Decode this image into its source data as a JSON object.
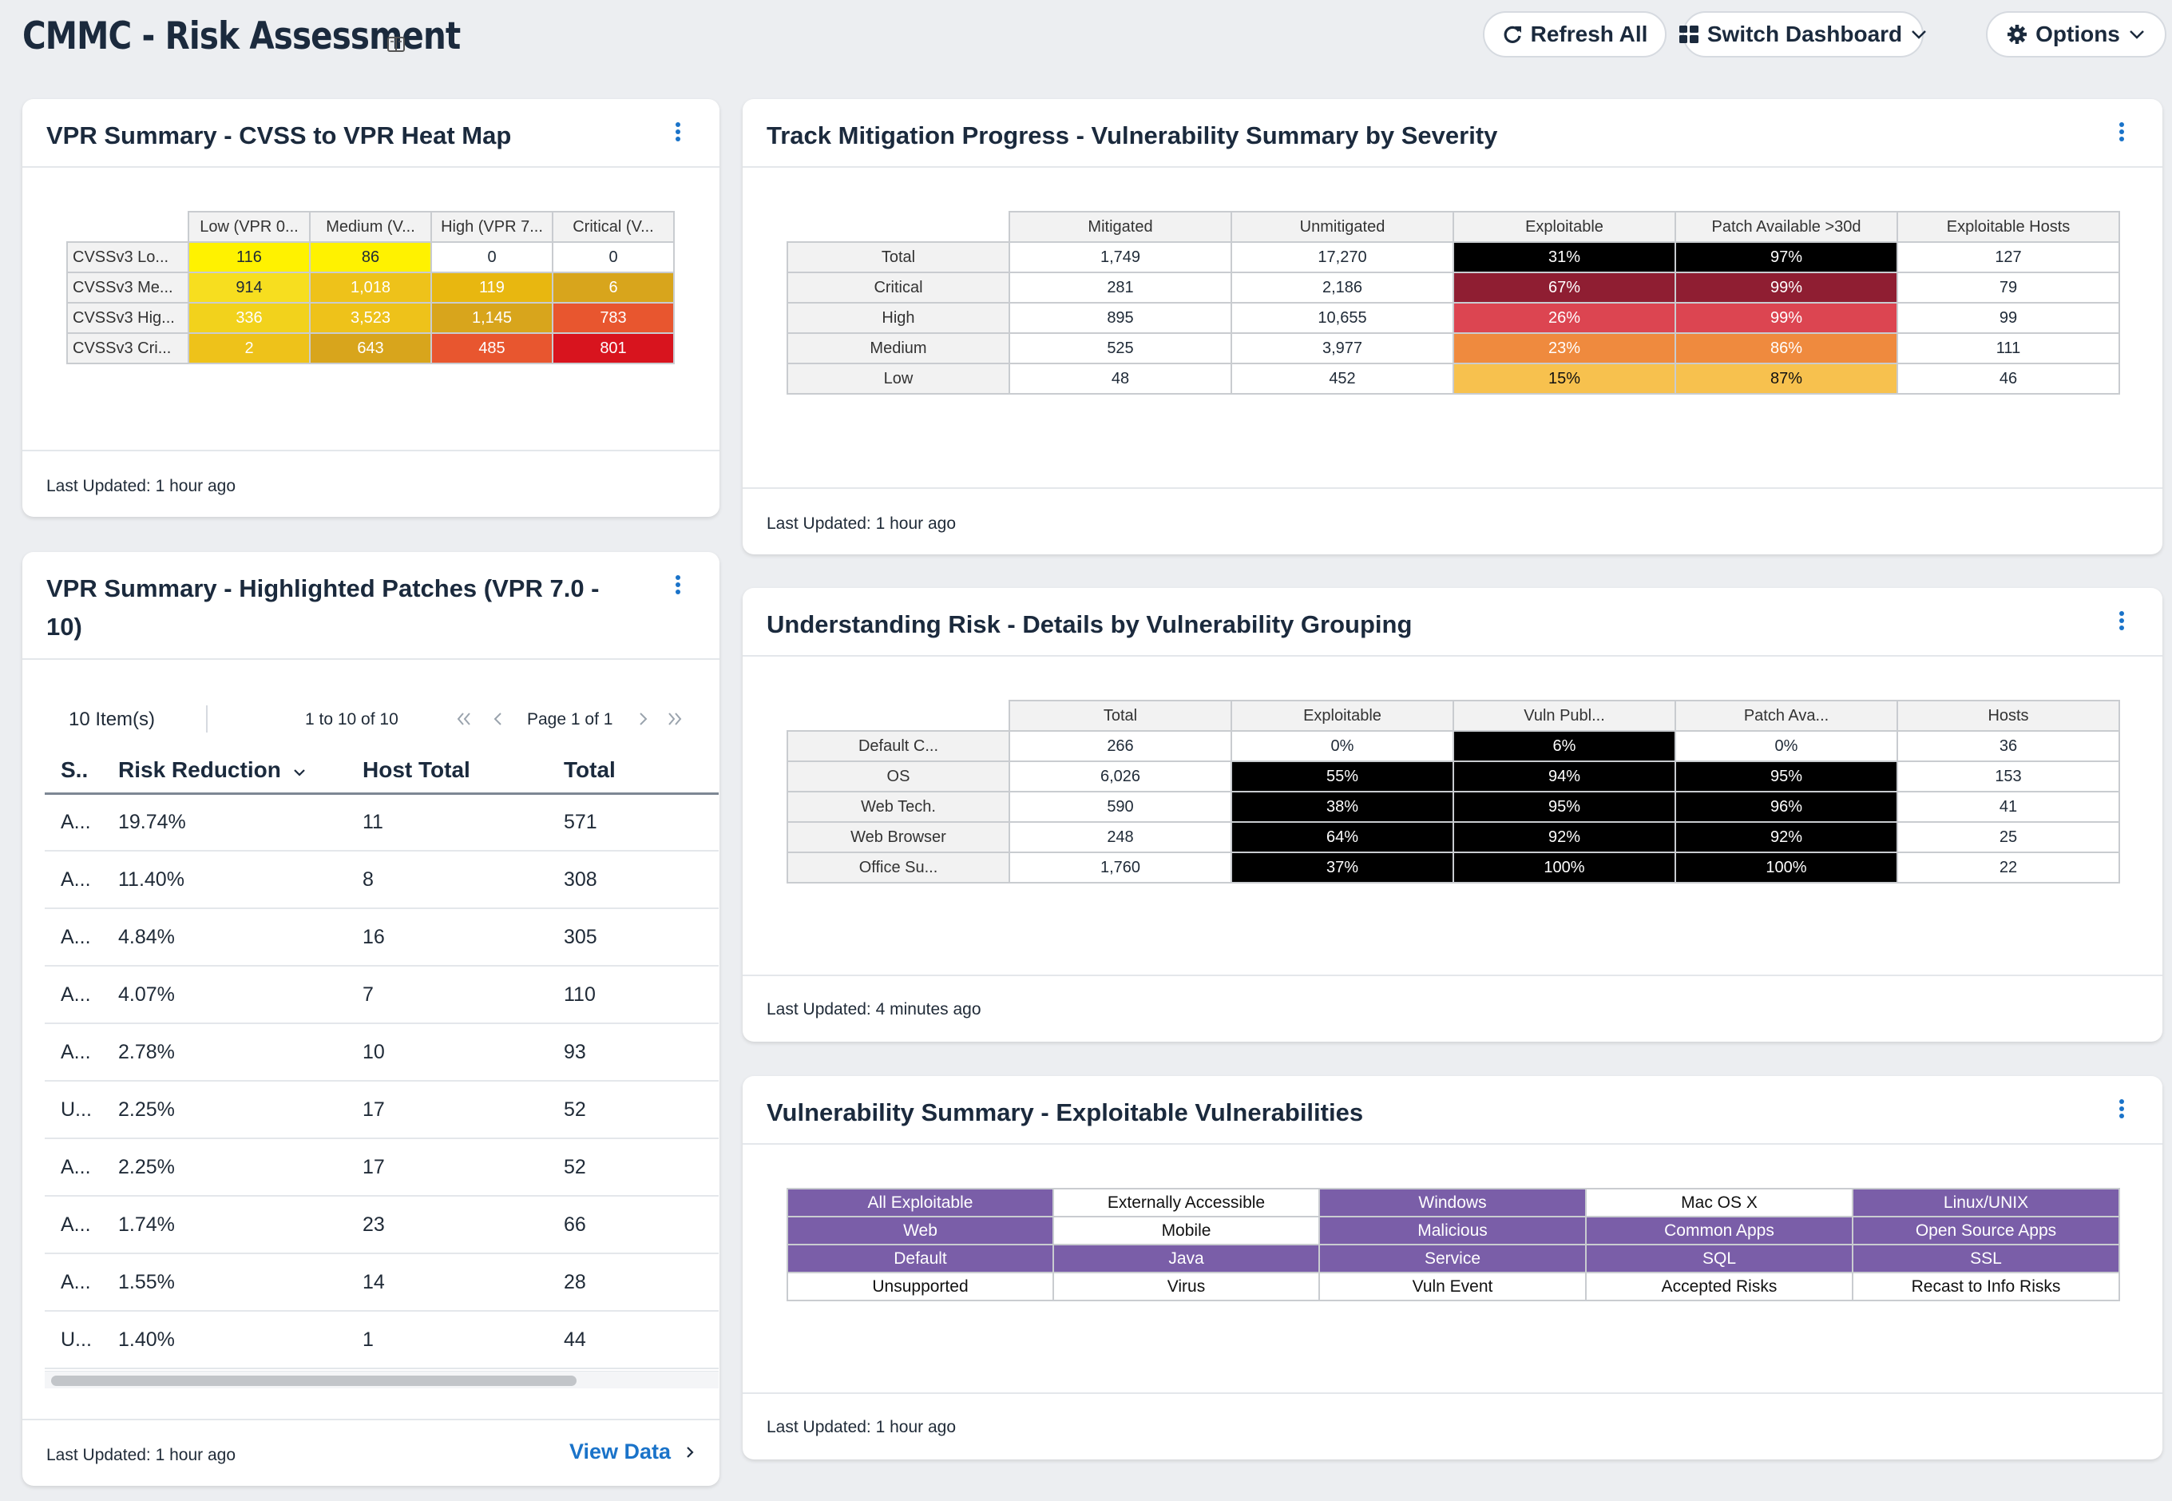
{
  "header": {
    "title": "CMMC - Risk Assessment",
    "refresh_label": "Refresh All",
    "switch_label": "Switch Dashboard",
    "options_label": "Options"
  },
  "colors": {
    "yellow": "#fff200",
    "yellow2": "#f7de1f",
    "gold": "#eec21a",
    "amber": "#e8b710",
    "ochre": "#d8a51c",
    "orange": "#ef8a3e",
    "redorange": "#e8562f",
    "red": "#d8141e",
    "lightred": "#dc4551",
    "darkred": "#8f1e32",
    "lightorange": "#f7c14e",
    "purple": "#7a5ea8",
    "accent": "#1a73c9"
  },
  "heatmap": {
    "title": "VPR Summary - CVSS to VPR Heat Map",
    "columns": [
      "Low (VPR 0...",
      "Medium (V...",
      "High (VPR 7...",
      "Critical (V..."
    ],
    "rows": [
      {
        "label": "CVSSv3 Lo...",
        "values": [
          "116",
          "86",
          "0",
          "0"
        ]
      },
      {
        "label": "CVSSv3 Me...",
        "values": [
          "914",
          "1,018",
          "119",
          "6"
        ]
      },
      {
        "label": "CVSSv3 Hig...",
        "values": [
          "336",
          "3,523",
          "1,145",
          "783"
        ]
      },
      {
        "label": "CVSSv3 Cri...",
        "values": [
          "2",
          "643",
          "485",
          "801"
        ]
      }
    ],
    "updated": "Last Updated: 1 hour ago"
  },
  "patches": {
    "title_line1": "VPR Summary - Highlighted Patches (VPR 7.0 -",
    "title_line2": "10)",
    "item_count": "10 Item(s)",
    "range": "1 to 10 of 10",
    "page": "Page 1 of 1",
    "columns": [
      "S..",
      "Risk Reduction",
      "Host Total",
      "Total"
    ],
    "rows": [
      {
        "s": "A...",
        "risk": "19.74%",
        "hosts": "11",
        "total": "571"
      },
      {
        "s": "A...",
        "risk": "11.40%",
        "hosts": "8",
        "total": "308"
      },
      {
        "s": "A...",
        "risk": "4.84%",
        "hosts": "16",
        "total": "305"
      },
      {
        "s": "A...",
        "risk": "4.07%",
        "hosts": "7",
        "total": "110"
      },
      {
        "s": "A...",
        "risk": "2.78%",
        "hosts": "10",
        "total": "93"
      },
      {
        "s": "U...",
        "risk": "2.25%",
        "hosts": "17",
        "total": "52"
      },
      {
        "s": "A...",
        "risk": "2.25%",
        "hosts": "17",
        "total": "52"
      },
      {
        "s": "A...",
        "risk": "1.74%",
        "hosts": "23",
        "total": "66"
      },
      {
        "s": "A...",
        "risk": "1.55%",
        "hosts": "14",
        "total": "28"
      },
      {
        "s": "U...",
        "risk": "1.40%",
        "hosts": "1",
        "total": "44"
      }
    ],
    "updated": "Last Updated: 1 hour ago",
    "view_data": "View Data"
  },
  "mitigation": {
    "title": "Track Mitigation Progress - Vulnerability Summary by Severity",
    "columns": [
      "Mitigated",
      "Unmitigated",
      "Exploitable",
      "Patch Available >30d",
      "Exploitable Hosts"
    ],
    "rows": [
      {
        "label": "Total",
        "values": [
          "1,749",
          "17,270",
          "31%",
          "97%",
          "127"
        ]
      },
      {
        "label": "Critical",
        "values": [
          "281",
          "2,186",
          "67%",
          "99%",
          "79"
        ]
      },
      {
        "label": "High",
        "values": [
          "895",
          "10,655",
          "26%",
          "99%",
          "99"
        ]
      },
      {
        "label": "Medium",
        "values": [
          "525",
          "3,977",
          "23%",
          "86%",
          "111"
        ]
      },
      {
        "label": "Low",
        "values": [
          "48",
          "452",
          "15%",
          "87%",
          "46"
        ]
      }
    ],
    "updated": "Last Updated: 1 hour ago"
  },
  "grouping": {
    "title": "Understanding Risk - Details by Vulnerability Grouping",
    "columns": [
      "Total",
      "Exploitable",
      "Vuln Publ...",
      "Patch Ava...",
      "Hosts"
    ],
    "rows": [
      {
        "label": "Default C...",
        "values": [
          "266",
          "0%",
          "6%",
          "0%",
          "36"
        ]
      },
      {
        "label": "OS",
        "values": [
          "6,026",
          "55%",
          "94%",
          "95%",
          "153"
        ]
      },
      {
        "label": "Web Tech.",
        "values": [
          "590",
          "38%",
          "95%",
          "96%",
          "41"
        ]
      },
      {
        "label": "Web Browser",
        "values": [
          "248",
          "64%",
          "92%",
          "92%",
          "25"
        ]
      },
      {
        "label": "Office Su...",
        "values": [
          "1,760",
          "37%",
          "100%",
          "100%",
          "22"
        ]
      }
    ],
    "updated": "Last Updated: 4 minutes ago"
  },
  "exploitable": {
    "title": "Vulnerability Summary - Exploitable Vulnerabilities",
    "rows": [
      [
        "All Exploitable",
        "Externally Accessible",
        "Windows",
        "Mac OS X",
        "Linux/UNIX"
      ],
      [
        "Web",
        "Mobile",
        "Malicious",
        "Common Apps",
        "Open Source Apps"
      ],
      [
        "Default",
        "Java",
        "Service",
        "SQL",
        "SSL"
      ],
      [
        "Unsupported",
        "Virus",
        "Vuln Event",
        "Accepted Risks",
        "Recast to Info Risks"
      ]
    ],
    "updated": "Last Updated: 1 hour ago"
  }
}
